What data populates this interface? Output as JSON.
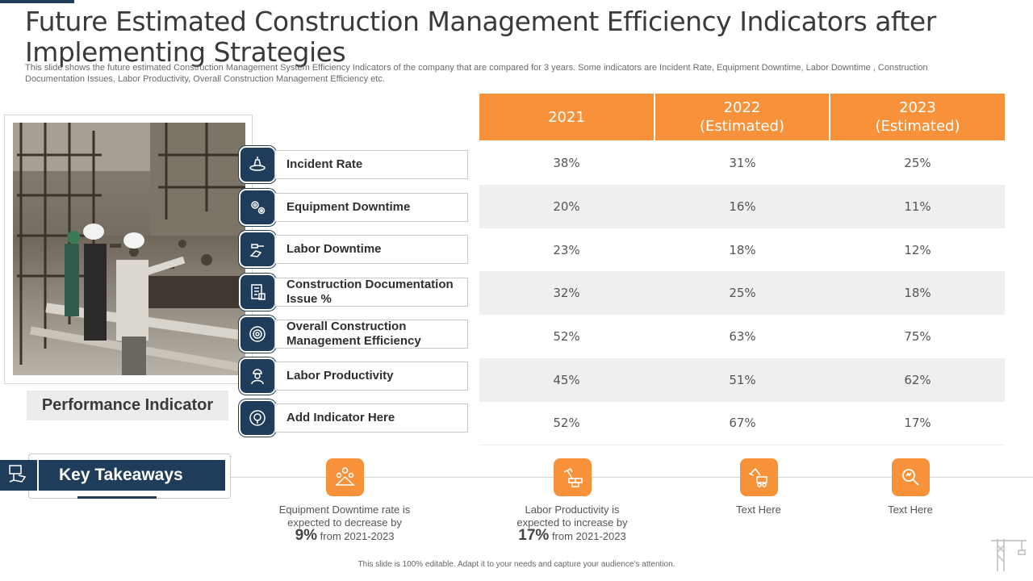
{
  "title": "Future Estimated Construction Management Efficiency Indicators after Implementing Strategies",
  "subtitle": "This slide shows the future estimated Construction Management System Efficiency Indicators of the company that are compared for 3 years. Some indicators are Incident Rate, Equipment Downtime, Labor Downtime , Construction Documentation Issues, Labor Productivity, Overall Construction Management Efficiency etc.",
  "performance_label": "Performance Indicator",
  "table": {
    "headers": [
      "2021",
      "2022\n(Estimated)",
      "2023\n(Estimated)"
    ],
    "rows": [
      {
        "indicator": "Incident Rate",
        "icon": "incident-icon",
        "values": [
          "38%",
          "31%",
          "25%"
        ]
      },
      {
        "indicator": "Equipment Downtime",
        "icon": "gears-icon",
        "values": [
          "20%",
          "16%",
          "11%"
        ]
      },
      {
        "indicator": "Labor Downtime",
        "icon": "hammer-hand-icon",
        "values": [
          "23%",
          "18%",
          "12%"
        ]
      },
      {
        "indicator": "Construction Documentation Issue %",
        "icon": "document-icon",
        "values": [
          "32%",
          "25%",
          "18%"
        ]
      },
      {
        "indicator": "Overall Construction Management Efficiency",
        "icon": "efficiency-gear-icon",
        "values": [
          "52%",
          "63%",
          "75%"
        ]
      },
      {
        "indicator": "Labor Productivity",
        "icon": "worker-icon",
        "values": [
          "45%",
          "51%",
          "62%"
        ]
      },
      {
        "indicator": "Add Indicator Here",
        "icon": "badge-icon",
        "values": [
          "52%",
          "67%",
          "17%"
        ]
      }
    ]
  },
  "key_takeaways": {
    "title": "Key Takeaways",
    "items": [
      {
        "icon": "team-icon",
        "line1": "Equipment Downtime rate is",
        "line2": "expected to decrease by",
        "big": "9%",
        "suffix": "from 2021-2023"
      },
      {
        "icon": "bricks-icon",
        "line1": "Labor Productivity is",
        "line2": "expected to increase by",
        "big": "17%",
        "suffix": "from 2021-2023"
      },
      {
        "icon": "excavator-icon",
        "text": "Text Here"
      },
      {
        "icon": "search-icon",
        "text": "Text Here"
      }
    ]
  },
  "footer": "This slide is 100% editable. Adapt it to your needs and capture your audience’s attention.",
  "colors": {
    "accent": "#f7923a",
    "navy": "#1f3d5a",
    "row_alt": "#efefef"
  }
}
